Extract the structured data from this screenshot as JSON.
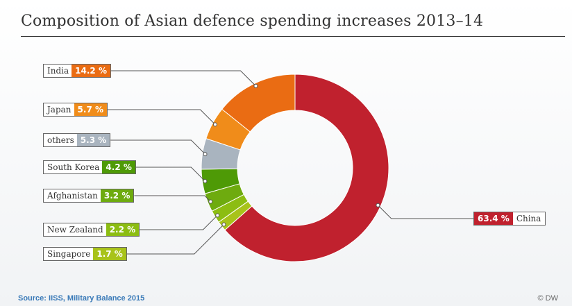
{
  "chart_data": {
    "type": "pie",
    "title": "Composition of Asian defence spending increases 2013–14",
    "slices": [
      {
        "name": "China",
        "value": 63.4,
        "label": "63.4 %",
        "color": "#c0212e"
      },
      {
        "name": "Singapore",
        "value": 1.7,
        "label": "1.7 %",
        "color": "#a8c31a"
      },
      {
        "name": "New Zealand",
        "value": 2.2,
        "label": "2.2 %",
        "color": "#8cbd12"
      },
      {
        "name": "Afghanistan",
        "value": 3.2,
        "label": "3.2 %",
        "color": "#6eab0f"
      },
      {
        "name": "South Korea",
        "value": 4.2,
        "label": "4.2 %",
        "color": "#4e9a06"
      },
      {
        "name": "others",
        "value": 5.3,
        "label": "5.3 %",
        "color": "#a9b4bf"
      },
      {
        "name": "Japan",
        "value": 5.7,
        "label": "5.7 %",
        "color": "#f08c1a"
      },
      {
        "name": "India",
        "value": 14.2,
        "label": "14.2 %",
        "color": "#ea6c13"
      }
    ]
  },
  "source": "Source: IISS, Military Balance 2015",
  "credit": "© DW"
}
